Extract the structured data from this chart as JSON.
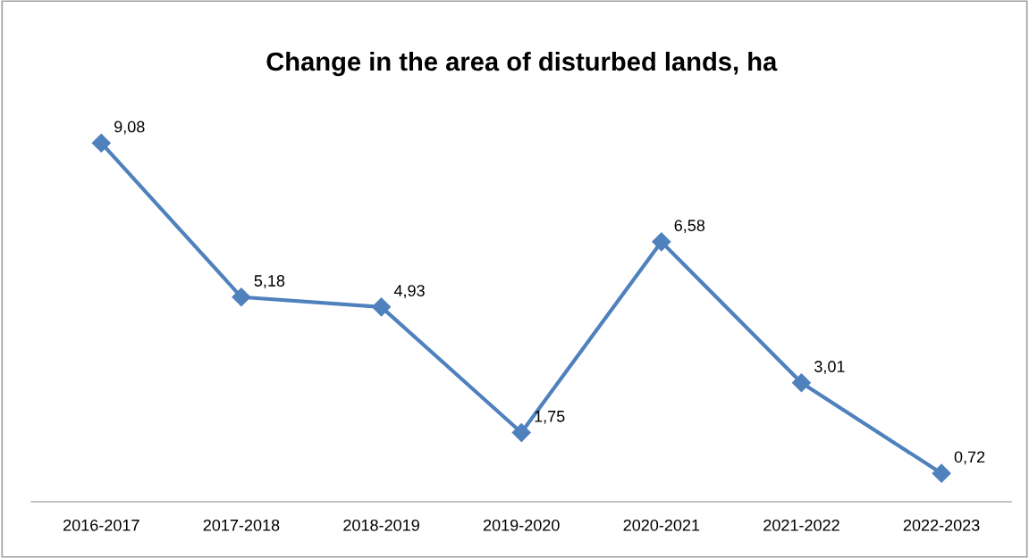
{
  "chart_data": {
    "type": "line",
    "title": "Change in the area of disturbed lands, ha",
    "categories": [
      "2016-2017",
      "2017-2018",
      "2018-2019",
      "2019-2020",
      "2020-2021",
      "2021-2022",
      "2022-2023"
    ],
    "series": [
      {
        "color": "#4f81bd",
        "values": [
          9.08,
          5.18,
          4.93,
          1.75,
          6.58,
          3.01,
          0.72
        ],
        "value_labels": [
          "9,08",
          "5,18",
          "4,93",
          "1,75",
          "6,58",
          "3,01",
          "0,72"
        ]
      }
    ],
    "marker": "diamond",
    "line_style": "solid",
    "grid": false,
    "legend": false,
    "tick_labels": "x"
  }
}
